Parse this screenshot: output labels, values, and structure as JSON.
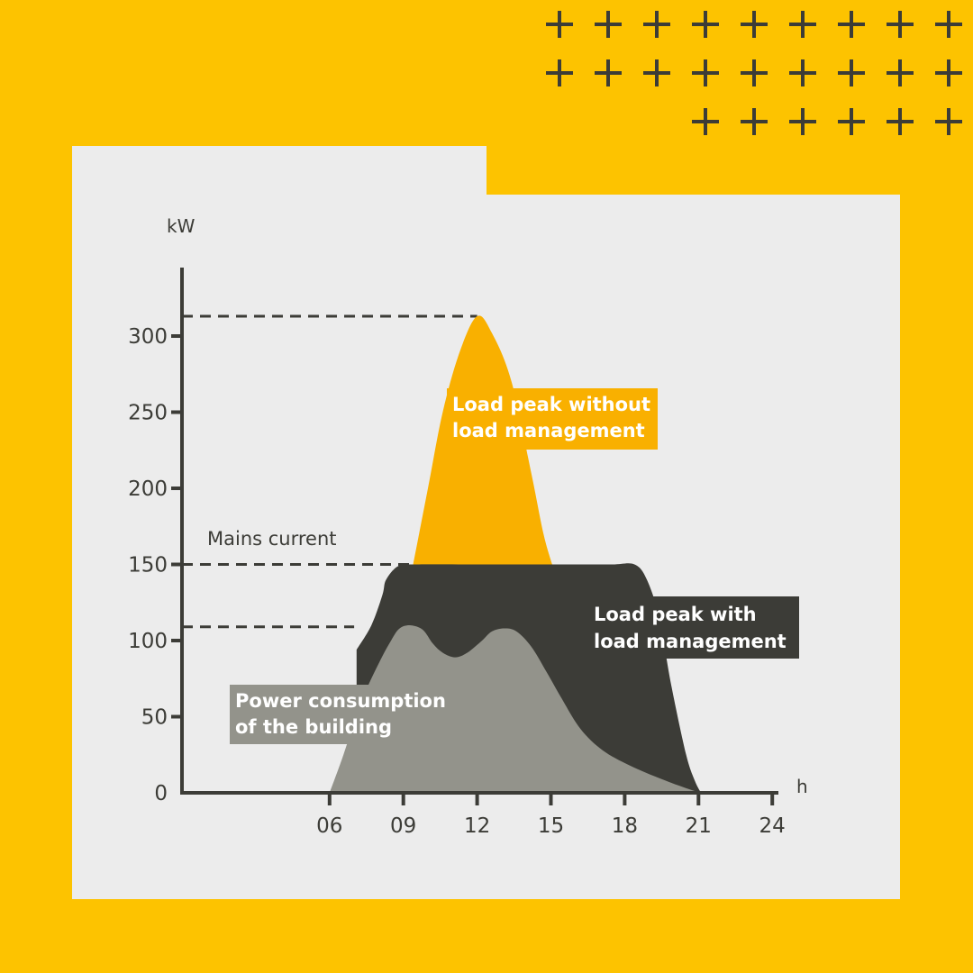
{
  "colors": {
    "background": "#fdc300",
    "panel": "#ececec",
    "axis": "#3c3c37",
    "peak_without": "#f9b000",
    "peak_with": "#3c3c37",
    "building": "#93938b"
  },
  "chart_data": {
    "type": "area",
    "xlabel": "h",
    "ylabel": "kW",
    "x_ticks": [
      "06",
      "09",
      "12",
      "15",
      "18",
      "21",
      "24"
    ],
    "y_ticks": [
      "0",
      "50",
      "100",
      "150",
      "200",
      "250",
      "300"
    ],
    "xlim": [
      0,
      25.3
    ],
    "ylim": [
      0,
      340
    ],
    "grid": false,
    "reference_lines": [
      {
        "y": 313,
        "x_end": 12
      },
      {
        "y": 150,
        "x_end": 9.4,
        "label": "Mains current"
      },
      {
        "y": 109,
        "x_end": 7.0
      }
    ],
    "series": [
      {
        "name": "Load peak without load management",
        "points": [
          [
            9.4,
            150
          ],
          [
            10.0,
            200
          ],
          [
            10.6,
            250
          ],
          [
            11.3,
            290
          ],
          [
            12.0,
            313
          ],
          [
            12.6,
            302
          ],
          [
            13.4,
            270
          ],
          [
            14.2,
            210
          ],
          [
            14.7,
            170
          ],
          [
            15.05,
            150
          ]
        ]
      },
      {
        "name": "Load peak with load management",
        "points": [
          [
            7.1,
            94
          ],
          [
            7.7,
            110
          ],
          [
            8.15,
            130
          ],
          [
            8.3,
            140
          ],
          [
            8.8,
            149
          ],
          [
            9.5,
            150
          ],
          [
            12,
            150
          ],
          [
            15,
            150
          ],
          [
            16,
            150
          ],
          [
            17.5,
            150
          ],
          [
            18.4,
            150
          ],
          [
            18.9,
            140
          ],
          [
            19.4,
            115
          ],
          [
            19.9,
            70
          ],
          [
            20.5,
            25
          ],
          [
            20.85,
            8
          ],
          [
            21.1,
            0
          ]
        ]
      },
      {
        "name": "Power consumption of the building",
        "points": [
          [
            6.0,
            0
          ],
          [
            6.5,
            22
          ],
          [
            7.3,
            60
          ],
          [
            8.0,
            85
          ],
          [
            8.5,
            100
          ],
          [
            8.85,
            108
          ],
          [
            9.3,
            110
          ],
          [
            9.8,
            107
          ],
          [
            10.2,
            98
          ],
          [
            10.6,
            92
          ],
          [
            11.1,
            89
          ],
          [
            11.6,
            92
          ],
          [
            12.2,
            100
          ],
          [
            12.6,
            106
          ],
          [
            13.1,
            108
          ],
          [
            13.6,
            106
          ],
          [
            14.2,
            96
          ],
          [
            14.8,
            80
          ],
          [
            15.4,
            63
          ],
          [
            16.2,
            42
          ],
          [
            17.1,
            28
          ],
          [
            18.2,
            18
          ],
          [
            19.5,
            9
          ],
          [
            20.5,
            3
          ],
          [
            21.1,
            0
          ]
        ]
      }
    ],
    "labels": [
      {
        "series": 0,
        "lines": [
          "Load peak without",
          "load management"
        ]
      },
      {
        "series": 1,
        "lines": [
          "Load peak with",
          "load management"
        ]
      },
      {
        "series": 2,
        "lines": [
          "Power consumption",
          "of the building"
        ]
      }
    ]
  }
}
